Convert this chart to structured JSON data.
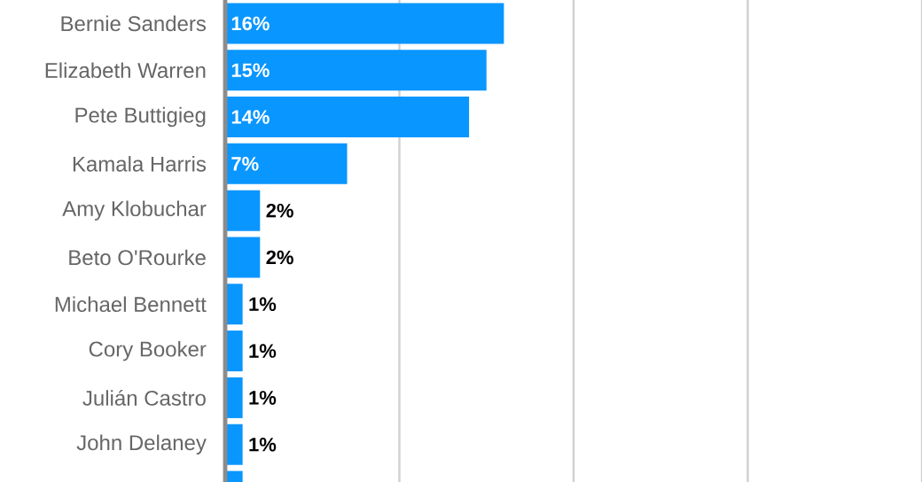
{
  "chart_data": {
    "type": "bar",
    "orientation": "horizontal",
    "categories": [
      "Bernie Sanders",
      "Elizabeth Warren",
      "Pete Buttigieg",
      "Kamala Harris",
      "Amy Klobuchar",
      "Beto O'Rourke",
      "Michael Bennett",
      "Cory Booker",
      "Julián Castro",
      "John Delaney",
      null
    ],
    "values": [
      16,
      15,
      14,
      7,
      2,
      2,
      1,
      1,
      1,
      1,
      1
    ],
    "value_labels": [
      "16%",
      "15%",
      "14%",
      "7%",
      "2%",
      "2%",
      "1%",
      "1%",
      "1%",
      "1%",
      null
    ],
    "color": "#0a96ff",
    "xlim": [
      0,
      40
    ],
    "xticks": [
      {
        "value": 10,
        "label": null
      },
      {
        "value": 20,
        "label": null
      },
      {
        "value": 30,
        "label": null
      },
      {
        "value": 40,
        "label": null
      }
    ],
    "grid": "x",
    "tick_labels": "y"
  }
}
